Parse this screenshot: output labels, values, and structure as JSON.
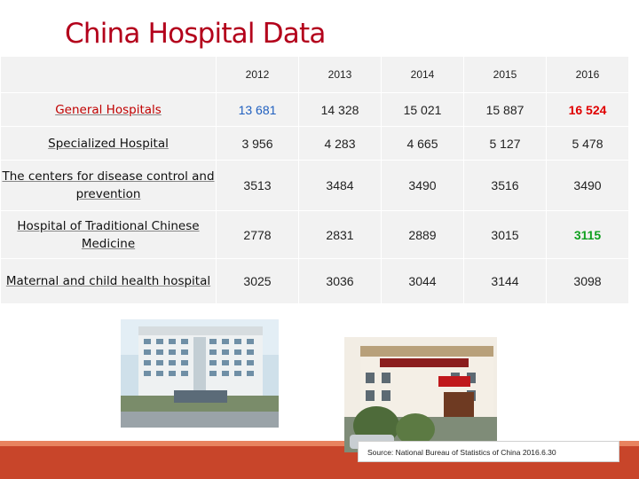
{
  "title": "China Hospital Data",
  "table": {
    "years": [
      "2012",
      "2013",
      "2014",
      "2015",
      "2016"
    ],
    "rows": [
      {
        "label": "General Hospitals",
        "values": [
          "13 681",
          "14 328",
          "15 021",
          "15 887",
          "16 524"
        ]
      },
      {
        "label": "Specialized Hospital",
        "values": [
          "3 956",
          "4 283",
          "4 665",
          "5 127",
          "5 478"
        ]
      },
      {
        "label": "The centers for disease control and prevention",
        "values": [
          "3513",
          "3484",
          "3490",
          "3516",
          "3490"
        ]
      },
      {
        "label": "Hospital of Traditional Chinese Medicine",
        "values": [
          "2778",
          "2831",
          "2889",
          "3015",
          "3115"
        ]
      },
      {
        "label": "Maternal and child health hospital",
        "values": [
          "3025",
          "3036",
          "3044",
          "3144",
          "3098"
        ]
      }
    ]
  },
  "colors": {
    "title": "#b3001b",
    "highlight_blue": "#1f5fbf",
    "highlight_red": "#e00000",
    "highlight_green": "#10a020",
    "footer": "#c8452a"
  },
  "source": "Source: National Bureau of Statistics of China 2016.6.30"
}
